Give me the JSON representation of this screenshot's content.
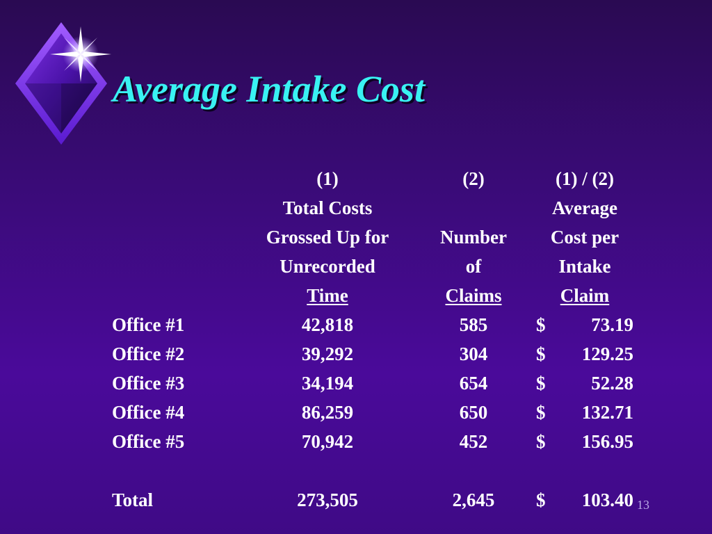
{
  "slide": {
    "title": "Average Intake Cost",
    "page_number": "13"
  },
  "table": {
    "header_rows": [
      [
        "(1)",
        "(2)",
        "(1) / (2)"
      ],
      [
        "Total Costs",
        "",
        "Average"
      ],
      [
        "Grossed Up for",
        "Number",
        "Cost per"
      ],
      [
        "Unrecorded",
        "of",
        "Intake"
      ],
      [
        "Time",
        "Claims",
        "Claim"
      ]
    ],
    "rows": [
      {
        "label": "Office #1",
        "total_costs": "42,818",
        "claims": "585",
        "currency": "$",
        "average": "73.19"
      },
      {
        "label": "Office #2",
        "total_costs": "39,292",
        "claims": "304",
        "currency": "$",
        "average": "129.25"
      },
      {
        "label": "Office #3",
        "total_costs": "34,194",
        "claims": "654",
        "currency": "$",
        "average": "52.28"
      },
      {
        "label": "Office #4",
        "total_costs": "86,259",
        "claims": "650",
        "currency": "$",
        "average": "132.71"
      },
      {
        "label": "Office #5",
        "total_costs": "70,942",
        "claims": "452",
        "currency": "$",
        "average": "156.95"
      }
    ],
    "total": {
      "label": "Total",
      "total_costs": "273,505",
      "claims": "2,645",
      "currency": "$",
      "average": "103.40"
    }
  },
  "colors": {
    "title": "#39f2f2",
    "background_top": "#2a0a52",
    "background_bottom": "#4a0a9a",
    "text": "#ffffff"
  },
  "icons": {
    "logo": "diamond-star-icon"
  }
}
